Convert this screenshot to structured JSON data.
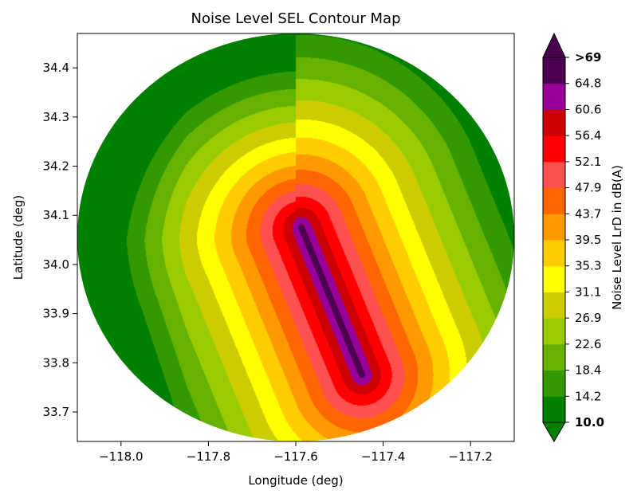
{
  "chart_data": {
    "type": "contour",
    "title": "Noise Level SEL Contour Map",
    "xlabel": "Longitude (deg)",
    "ylabel": "Latitude (deg)",
    "xlim": [
      -118.1,
      -117.1
    ],
    "ylim": [
      33.64,
      34.47
    ],
    "x_ticks": [
      -118.0,
      -117.8,
      -117.6,
      -117.4,
      -117.2
    ],
    "x_tick_labels": [
      "−118.0",
      "−117.8",
      "−117.6",
      "−117.4",
      "−117.2"
    ],
    "y_ticks": [
      33.7,
      33.8,
      33.9,
      34.0,
      34.1,
      34.2,
      34.3,
      34.4
    ],
    "y_tick_labels": [
      "33.7",
      "33.8",
      "33.9",
      "34.0",
      "34.1",
      "34.2",
      "34.3",
      "34.4"
    ],
    "grid": false,
    "colorbar": {
      "label": "Noise Level LrD in dB(A)",
      "levels": [
        10.0,
        14.2,
        18.4,
        22.6,
        26.9,
        31.1,
        35.3,
        39.5,
        43.7,
        47.9,
        52.1,
        56.4,
        60.6,
        64.8,
        69.0
      ],
      "tick_labels": [
        "10.0",
        "14.2",
        "18.4",
        "22.6",
        "26.9",
        "31.1",
        "35.3",
        "39.5",
        "43.7",
        "47.9",
        "52.1",
        "56.4",
        "60.6",
        "64.8",
        ">69"
      ],
      "colors": [
        "#008000",
        "#339900",
        "#66b200",
        "#99cc00",
        "#cccc00",
        "#ffff00",
        "#ffcc00",
        "#ff9900",
        "#ff6600",
        "#ff5050",
        "#ff0000",
        "#cc0000",
        "#990099",
        "#4c0050"
      ],
      "extend_min_color": "#008000",
      "extend_max_color": "#4c0050"
    },
    "field": {
      "source": {
        "lon": -117.52,
        "lat": 33.93
      },
      "track_direction": {
        "dlon": 0.42,
        "dlat": -0.91
      },
      "extent": {
        "lon_min": -118.1,
        "lon_max": -117.1,
        "lat_min": 33.64,
        "lat_max": 34.47
      }
    }
  }
}
